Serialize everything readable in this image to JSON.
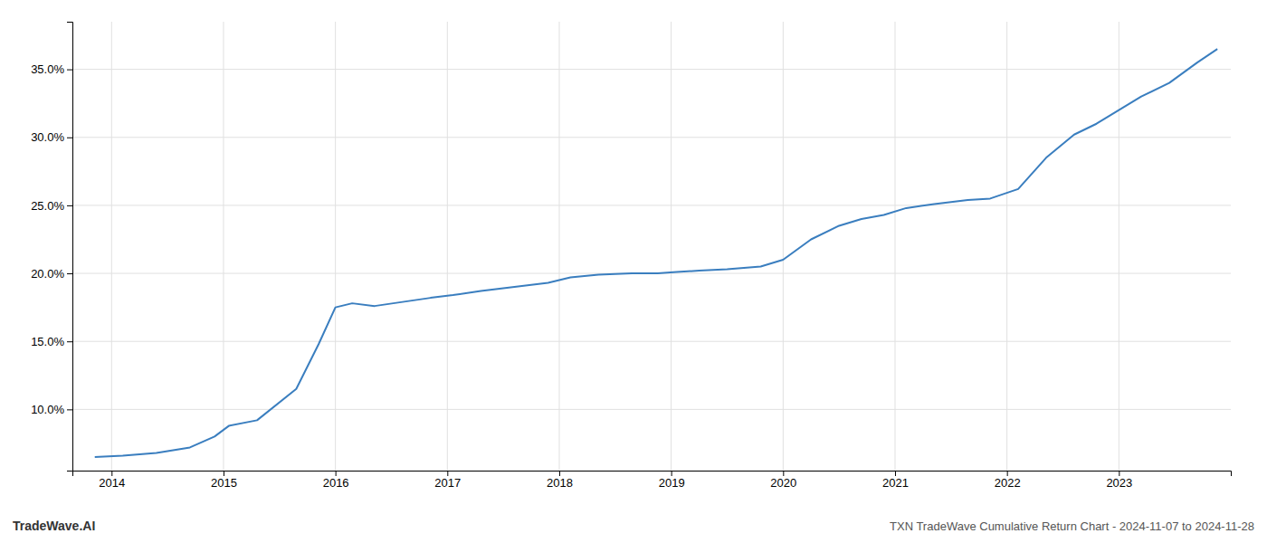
{
  "chart_data": {
    "type": "line",
    "title": "TXN TradeWave Cumulative Return Chart - 2024-11-07 to 2024-11-28",
    "annotations": [
      "TradeWave.AI"
    ],
    "x": [
      2013.85,
      2014.1,
      2014.4,
      2014.7,
      2014.92,
      2015.05,
      2015.3,
      2015.65,
      2015.85,
      2016.0,
      2016.15,
      2016.35,
      2016.6,
      2016.85,
      2017.05,
      2017.3,
      2017.6,
      2017.9,
      2018.1,
      2018.35,
      2018.65,
      2018.88,
      2019.05,
      2019.25,
      2019.5,
      2019.8,
      2020.0,
      2020.25,
      2020.5,
      2020.7,
      2020.9,
      2021.1,
      2021.35,
      2021.65,
      2021.85,
      2022.1,
      2022.35,
      2022.6,
      2022.8,
      2023.0,
      2023.2,
      2023.45,
      2023.7,
      2023.88
    ],
    "values": [
      6.5,
      6.6,
      6.8,
      7.2,
      8.0,
      8.8,
      9.2,
      11.5,
      14.8,
      17.5,
      17.8,
      17.6,
      17.9,
      18.2,
      18.4,
      18.7,
      19.0,
      19.3,
      19.7,
      19.9,
      20.0,
      20.0,
      20.1,
      20.2,
      20.3,
      20.5,
      21.0,
      22.5,
      23.5,
      24.0,
      24.3,
      24.8,
      25.1,
      25.4,
      25.5,
      26.2,
      28.5,
      30.2,
      31.0,
      32.0,
      33.0,
      34.0,
      35.5,
      36.5
    ],
    "color": "#3a7ebf",
    "xlim": [
      2013.65,
      2024.0
    ],
    "ylim": [
      5.5,
      38.5
    ],
    "xticks": [
      2014,
      2015,
      2016,
      2017,
      2018,
      2019,
      2020,
      2021,
      2022,
      2023
    ],
    "yticks": [
      {
        "value": 10.0,
        "label": "10.0%"
      },
      {
        "value": 15.0,
        "label": "15.0%"
      },
      {
        "value": 20.0,
        "label": "20.0%"
      },
      {
        "value": 25.0,
        "label": "25.0%"
      },
      {
        "value": 30.0,
        "label": "30.0%"
      },
      {
        "value": 35.0,
        "label": "35.0%"
      }
    ],
    "grid": true
  }
}
